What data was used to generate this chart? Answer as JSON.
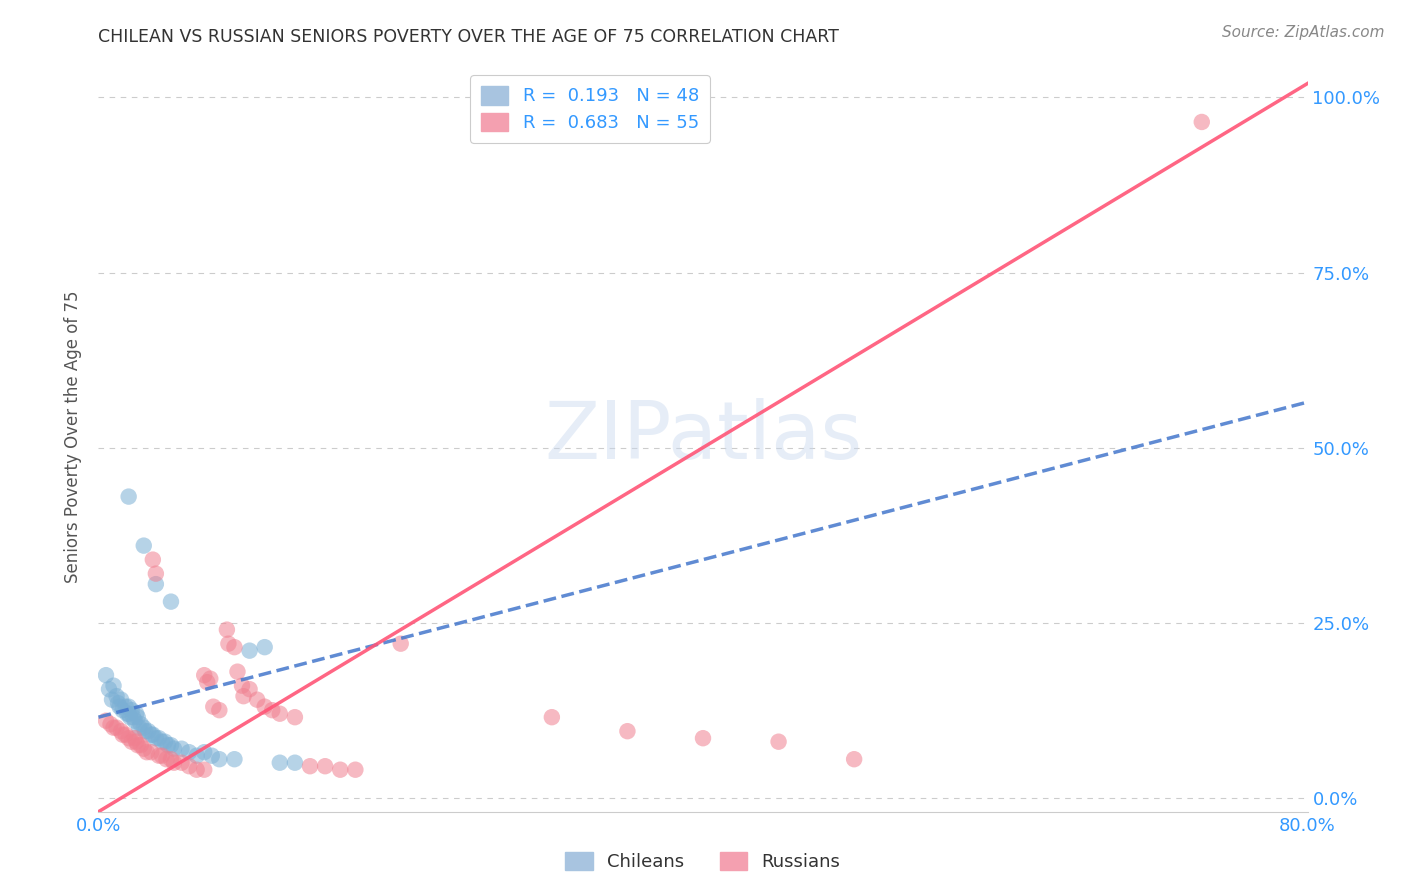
{
  "title": "CHILEAN VS RUSSIAN SENIORS POVERTY OVER THE AGE OF 75 CORRELATION CHART",
  "source": "Source: ZipAtlas.com",
  "ylabel": "Seniors Poverty Over the Age of 75",
  "xlim": [
    0.0,
    0.8
  ],
  "ylim": [
    -0.02,
    1.05
  ],
  "background_color": "#ffffff",
  "watermark": "ZIPatlas",
  "chilean_color": "#7bafd4",
  "russian_color": "#f08090",
  "chilean_line_color": "#4477cc",
  "chilean_line_style": "--",
  "russian_line_color": "#ff5577",
  "russian_line_style": "-",
  "legend_label_chilean": "R =  0.193   N = 48",
  "legend_label_russian": "R =  0.683   N = 55",
  "legend_color_chilean": "#a8c4e0",
  "legend_color_russian": "#f4a0b0",
  "legend_text_color": "#3399ff",
  "ytick_vals": [
    0.0,
    0.25,
    0.5,
    0.75,
    1.0
  ],
  "ytick_labels": [
    "0.0%",
    "25.0%",
    "50.0%",
    "75.0%",
    "100.0%"
  ],
  "xtick_labels_show": [
    "0.0%",
    "80.0%"
  ],
  "axis_color": "#3399ff",
  "grid_color": "#cccccc",
  "title_color": "#333333",
  "source_color": "#888888",
  "ylabel_color": "#555555",
  "chilean_line_x": [
    0.0,
    0.8
  ],
  "chilean_line_y": [
    0.115,
    0.565
  ],
  "russian_line_x": [
    0.0,
    0.8
  ],
  "russian_line_y": [
    -0.02,
    1.02
  ],
  "chilean_scatter": [
    [
      0.005,
      0.175
    ],
    [
      0.007,
      0.155
    ],
    [
      0.009,
      0.14
    ],
    [
      0.01,
      0.16
    ],
    [
      0.012,
      0.145
    ],
    [
      0.013,
      0.135
    ],
    [
      0.014,
      0.13
    ],
    [
      0.015,
      0.14
    ],
    [
      0.016,
      0.125
    ],
    [
      0.018,
      0.13
    ],
    [
      0.019,
      0.12
    ],
    [
      0.02,
      0.13
    ],
    [
      0.02,
      0.12
    ],
    [
      0.021,
      0.115
    ],
    [
      0.022,
      0.125
    ],
    [
      0.023,
      0.115
    ],
    [
      0.024,
      0.11
    ],
    [
      0.025,
      0.12
    ],
    [
      0.026,
      0.115
    ],
    [
      0.027,
      0.1
    ],
    [
      0.028,
      0.105
    ],
    [
      0.03,
      0.1
    ],
    [
      0.031,
      0.095
    ],
    [
      0.033,
      0.095
    ],
    [
      0.035,
      0.09
    ],
    [
      0.036,
      0.09
    ],
    [
      0.038,
      0.085
    ],
    [
      0.04,
      0.085
    ],
    [
      0.042,
      0.08
    ],
    [
      0.044,
      0.08
    ],
    [
      0.046,
      0.075
    ],
    [
      0.048,
      0.075
    ],
    [
      0.05,
      0.07
    ],
    [
      0.055,
      0.07
    ],
    [
      0.06,
      0.065
    ],
    [
      0.065,
      0.06
    ],
    [
      0.07,
      0.065
    ],
    [
      0.075,
      0.06
    ],
    [
      0.08,
      0.055
    ],
    [
      0.09,
      0.055
    ],
    [
      0.1,
      0.21
    ],
    [
      0.11,
      0.215
    ],
    [
      0.12,
      0.05
    ],
    [
      0.13,
      0.05
    ],
    [
      0.02,
      0.43
    ],
    [
      0.03,
      0.36
    ],
    [
      0.038,
      0.305
    ],
    [
      0.048,
      0.28
    ]
  ],
  "russian_scatter": [
    [
      0.005,
      0.11
    ],
    [
      0.008,
      0.105
    ],
    [
      0.01,
      0.1
    ],
    [
      0.012,
      0.1
    ],
    [
      0.015,
      0.095
    ],
    [
      0.016,
      0.09
    ],
    [
      0.018,
      0.09
    ],
    [
      0.02,
      0.085
    ],
    [
      0.022,
      0.08
    ],
    [
      0.024,
      0.085
    ],
    [
      0.025,
      0.08
    ],
    [
      0.026,
      0.075
    ],
    [
      0.028,
      0.075
    ],
    [
      0.03,
      0.07
    ],
    [
      0.032,
      0.065
    ],
    [
      0.035,
      0.065
    ],
    [
      0.036,
      0.34
    ],
    [
      0.038,
      0.32
    ],
    [
      0.04,
      0.06
    ],
    [
      0.042,
      0.06
    ],
    [
      0.045,
      0.055
    ],
    [
      0.048,
      0.055
    ],
    [
      0.05,
      0.05
    ],
    [
      0.055,
      0.05
    ],
    [
      0.06,
      0.045
    ],
    [
      0.065,
      0.04
    ],
    [
      0.07,
      0.04
    ],
    [
      0.07,
      0.175
    ],
    [
      0.072,
      0.165
    ],
    [
      0.074,
      0.17
    ],
    [
      0.076,
      0.13
    ],
    [
      0.08,
      0.125
    ],
    [
      0.085,
      0.24
    ],
    [
      0.086,
      0.22
    ],
    [
      0.09,
      0.215
    ],
    [
      0.092,
      0.18
    ],
    [
      0.095,
      0.16
    ],
    [
      0.096,
      0.145
    ],
    [
      0.1,
      0.155
    ],
    [
      0.105,
      0.14
    ],
    [
      0.11,
      0.13
    ],
    [
      0.115,
      0.125
    ],
    [
      0.12,
      0.12
    ],
    [
      0.13,
      0.115
    ],
    [
      0.14,
      0.045
    ],
    [
      0.15,
      0.045
    ],
    [
      0.16,
      0.04
    ],
    [
      0.17,
      0.04
    ],
    [
      0.2,
      0.22
    ],
    [
      0.3,
      0.115
    ],
    [
      0.35,
      0.095
    ],
    [
      0.4,
      0.085
    ],
    [
      0.45,
      0.08
    ],
    [
      0.5,
      0.055
    ],
    [
      0.73,
      0.965
    ]
  ]
}
